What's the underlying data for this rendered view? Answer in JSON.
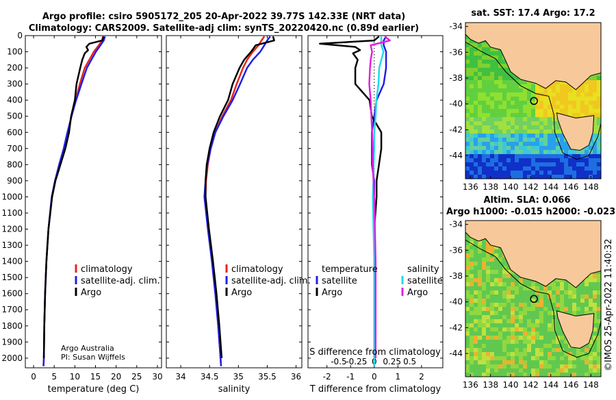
{
  "header": {
    "title_line1": "Argo profile: csiro 5905172_205 20-Apr-2022 39.77S 142.33E (NRT data)",
    "title_line2": "Climatology: CARS2009. Satellite-adj clim: synTS_20220420.nc (0.89d earlier)"
  },
  "credit": {
    "line1": "Argo Australia",
    "line2": "PI: Susan Wijffels",
    "timestamp": "©IMOS 25-Apr-2022 11:40:32"
  },
  "colors": {
    "climatology": "#e8231a",
    "satellite": "#1f1fe6",
    "argo": "#000000",
    "sat_sal": "#22d8e8",
    "argo_sal": "#e020e0",
    "land": "#f7c99a"
  },
  "chart_data": [
    {
      "type": "line",
      "id": "temperature",
      "xlabel": "temperature (deg C)",
      "ylabel": "",
      "xlim": [
        -2,
        31
      ],
      "ylim": [
        2060,
        0
      ],
      "xticks": [
        0,
        5,
        10,
        15,
        20,
        25,
        30
      ],
      "yticks": [
        0,
        100,
        200,
        300,
        400,
        500,
        600,
        700,
        800,
        900,
        1000,
        1100,
        1200,
        1300,
        1400,
        1500,
        1600,
        1700,
        1800,
        1900,
        2000
      ],
      "legend": [
        "climatology",
        "satellite-adj. clim.",
        "Argo"
      ],
      "series": [
        {
          "name": "climatology",
          "depth": [
            5,
            30,
            60,
            100,
            150,
            200,
            300,
            400,
            500,
            600,
            700,
            800,
            900,
            1000,
            1200,
            1400,
            1600,
            1800,
            2000,
            2050
          ],
          "values": [
            16.8,
            16.6,
            15.8,
            14.6,
            13.5,
            12.4,
            11.2,
            10.2,
            9.2,
            8.3,
            7.4,
            6.3,
            5.2,
            4.4,
            3.6,
            3.1,
            2.8,
            2.6,
            2.5,
            2.4
          ]
        },
        {
          "name": "satellite-adj. clim.",
          "depth": [
            5,
            30,
            60,
            100,
            150,
            200,
            300,
            400,
            500,
            600,
            700,
            800,
            900,
            1000,
            1200,
            1400,
            1600,
            1800,
            2000,
            2050
          ],
          "values": [
            17.3,
            17.0,
            16.2,
            15.1,
            14.0,
            12.9,
            11.6,
            10.3,
            9.2,
            8.2,
            7.3,
            6.2,
            5.2,
            4.4,
            3.6,
            3.1,
            2.8,
            2.6,
            2.5,
            2.4
          ]
        },
        {
          "name": "Argo",
          "depth": [
            5,
            30,
            50,
            70,
            90,
            110,
            150,
            200,
            300,
            400,
            500,
            600,
            700,
            800,
            900,
            1000,
            1200,
            1400,
            1600,
            1800,
            2000
          ],
          "values": [
            17.0,
            16.6,
            13.5,
            12.8,
            13.2,
            12.4,
            11.8,
            11.3,
            10.4,
            10.0,
            9.1,
            8.6,
            7.7,
            6.5,
            5.3,
            4.5,
            3.6,
            3.1,
            2.8,
            2.6,
            2.5
          ]
        }
      ]
    },
    {
      "type": "line",
      "id": "salinity",
      "xlabel": "salinity",
      "ylabel": "",
      "xlim": [
        33.75,
        36.1
      ],
      "ylim": [
        2060,
        0
      ],
      "xticks": [
        34,
        34.5,
        35,
        35.5,
        36
      ],
      "legend": [
        "climatology",
        "satellite-adj. clim.",
        "Argo"
      ],
      "series": [
        {
          "name": "climatology",
          "depth": [
            5,
            30,
            60,
            100,
            150,
            200,
            300,
            400,
            500,
            600,
            700,
            800,
            900,
            1000,
            1200,
            1400,
            1600,
            1800,
            2000,
            2050
          ],
          "values": [
            35.45,
            35.4,
            35.35,
            35.25,
            35.15,
            35.08,
            34.97,
            34.87,
            34.72,
            34.6,
            34.52,
            34.47,
            34.44,
            34.43,
            34.48,
            34.54,
            34.6,
            34.65,
            34.69,
            34.7
          ]
        },
        {
          "name": "satellite-adj. clim.",
          "depth": [
            5,
            30,
            60,
            100,
            150,
            200,
            300,
            400,
            500,
            600,
            700,
            800,
            900,
            1000,
            1200,
            1400,
            1600,
            1800,
            2000,
            2050
          ],
          "values": [
            35.55,
            35.5,
            35.45,
            35.38,
            35.25,
            35.15,
            35.03,
            34.9,
            34.74,
            34.6,
            34.52,
            34.46,
            34.43,
            34.41,
            34.47,
            34.54,
            34.6,
            34.65,
            34.69,
            34.7
          ]
        },
        {
          "name": "Argo",
          "depth": [
            5,
            30,
            60,
            100,
            150,
            200,
            300,
            400,
            500,
            600,
            700,
            800,
            900,
            1000,
            1200,
            1400,
            1600,
            1800,
            2000
          ],
          "values": [
            35.6,
            35.62,
            35.3,
            35.22,
            35.1,
            35.02,
            34.9,
            34.82,
            34.68,
            34.57,
            34.5,
            34.45,
            34.43,
            34.43,
            34.49,
            34.56,
            34.62,
            34.67,
            34.71
          ]
        }
      ]
    },
    {
      "type": "line",
      "id": "difference",
      "xlabel": "T difference from climatology",
      "xlabel_top": "S difference from climatology",
      "xlim": [
        -2.8,
        2.9
      ],
      "ylim": [
        2060,
        0
      ],
      "xticks": [
        -2,
        -1,
        0,
        1,
        2
      ],
      "sticks_labels": [
        "-0.5",
        "-0.25",
        "0",
        "0.25",
        "0.5"
      ],
      "sticks_values": [
        -0.5,
        -0.25,
        0,
        0.25,
        0.5
      ],
      "legend_left_title": "temperature",
      "legend_right_title": "salinity",
      "legend_left": [
        "satellite",
        "Argo"
      ],
      "legend_right": [
        "satellite",
        "Argo"
      ],
      "series": [
        {
          "name": "temperature satellite",
          "depth": [
            5,
            30,
            60,
            100,
            150,
            200,
            300,
            400,
            500,
            600,
            700,
            800,
            900,
            1000,
            1200,
            1400,
            1600,
            1800,
            2000,
            2050
          ],
          "values": [
            0.5,
            0.4,
            0.4,
            0.5,
            0.5,
            0.5,
            0.4,
            0.1,
            0.0,
            -0.1,
            -0.1,
            -0.1,
            0.0,
            0.0,
            0.0,
            0.0,
            0.0,
            0.0,
            0.0,
            0.0
          ]
        },
        {
          "name": "temperature Argo",
          "depth": [
            5,
            30,
            50,
            70,
            90,
            110,
            150,
            200,
            300,
            400,
            500,
            600,
            700,
            800,
            900,
            1000,
            1200,
            1400,
            1600,
            1800,
            2000
          ],
          "values": [
            0.2,
            0.0,
            -2.3,
            -0.8,
            -0.6,
            -0.9,
            -0.7,
            -0.8,
            -0.8,
            -0.2,
            -0.1,
            0.3,
            0.3,
            0.2,
            0.1,
            0.1,
            0.0,
            0.0,
            0.0,
            0.0,
            0.0
          ]
        },
        {
          "name": "salinity satellite",
          "depth": [
            5,
            30,
            60,
            100,
            150,
            200,
            300,
            400,
            500,
            600,
            700,
            800,
            900,
            1000,
            1200,
            1400,
            1600,
            1800,
            2000,
            2050
          ],
          "values": [
            0.1,
            0.1,
            0.1,
            0.13,
            0.1,
            0.07,
            0.06,
            0.03,
            0.02,
            0.0,
            0.0,
            -0.01,
            -0.01,
            -0.02,
            -0.01,
            0.0,
            0.0,
            0.0,
            0.0,
            0.0
          ]
        },
        {
          "name": "salinity Argo",
          "depth": [
            5,
            30,
            60,
            100,
            150,
            200,
            300,
            400,
            500,
            600,
            700,
            800,
            900,
            1000,
            1200,
            1400,
            1600,
            1800,
            2000
          ],
          "values": [
            0.15,
            0.22,
            -0.05,
            -0.03,
            -0.05,
            -0.06,
            -0.07,
            -0.05,
            -0.04,
            -0.03,
            -0.02,
            -0.02,
            -0.01,
            0.0,
            0.01,
            0.02,
            0.02,
            0.02,
            0.02
          ]
        }
      ]
    },
    {
      "type": "heatmap",
      "id": "map_sst",
      "title": "sat. SST: 17.4 Argo: 17.2",
      "xlim": [
        135.5,
        149
      ],
      "ylim": [
        -45.8,
        -33.7
      ],
      "xticks": [
        136,
        138,
        140,
        142,
        144,
        146,
        148
      ],
      "yticks": [
        -34,
        -36,
        -38,
        -40,
        -42,
        -44
      ],
      "marker": {
        "lon": 142.33,
        "lat": -39.77
      }
    },
    {
      "type": "heatmap",
      "id": "map_sla",
      "title": "Altim. SLA: 0.066",
      "subtitle": "Argo h1000: -0.015 h2000: -0.023",
      "xlim": [
        135.5,
        149
      ],
      "ylim": [
        -45.8,
        -33.7
      ],
      "xticks": [
        136,
        138,
        140,
        142,
        144,
        146,
        148
      ],
      "yticks": [
        -34,
        -36,
        -38,
        -40,
        -42,
        -44
      ],
      "marker": {
        "lon": 142.33,
        "lat": -39.77
      }
    }
  ]
}
